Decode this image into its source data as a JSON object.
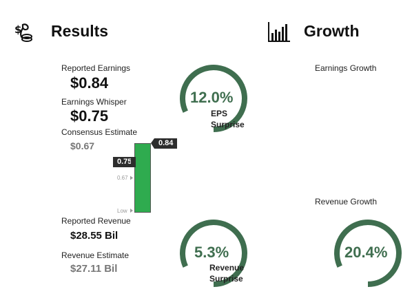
{
  "results": {
    "title": "Results",
    "icon": "money-bag-icon",
    "reported_earnings": {
      "label": "Reported Earnings",
      "value": "$0.84"
    },
    "earnings_whisper": {
      "label": "Earnings Whisper",
      "value": "$0.75"
    },
    "consensus_estimate": {
      "label": "Consensus Estimate",
      "value": "$0.67"
    },
    "eps_gauge": {
      "value": "12.0%",
      "caption_line1": "EPS",
      "caption_line2": "Surprise",
      "fraction": 0.82
    },
    "reported_revenue": {
      "label": "Reported Revenue",
      "value": "$28.55 Bil"
    },
    "revenue_estimate": {
      "label": "Revenue Estimate",
      "value": "$27.11 Bil"
    },
    "revenue_gauge": {
      "value": "5.3%",
      "caption_line1": "Revenue",
      "caption_line2": "Surprise",
      "fraction": 0.82
    }
  },
  "growth": {
    "title": "Growth",
    "icon": "bar-chart-icon",
    "earnings_growth": {
      "label": "Earnings Growth"
    },
    "revenue_growth": {
      "label": "Revenue Growth",
      "value": "20.4%",
      "fraction": 0.82
    }
  },
  "chart_data": {
    "type": "bar",
    "bar": {
      "low": "Low",
      "high": 0.84,
      "label": "0.84"
    },
    "markers": [
      {
        "label": "0.75",
        "value": 0.75
      },
      {
        "label": "0.67",
        "value": 0.67
      }
    ],
    "bottom_label": "Low"
  },
  "colors": {
    "gauge": "#3f6e4f",
    "bar": "#2fab4f",
    "flag": "#2d2d2d"
  }
}
